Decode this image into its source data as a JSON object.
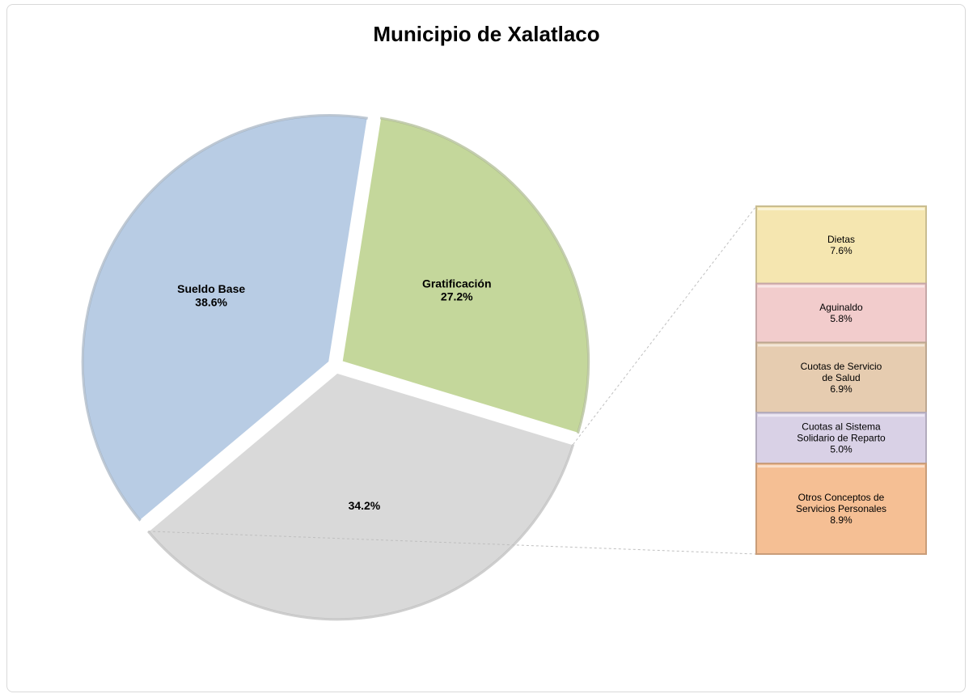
{
  "chart_data": {
    "type": "pie",
    "title": "Municipio de Xalatlaco",
    "slices": [
      {
        "label": "Sueldo Base",
        "value": 38.6,
        "display": "38.6%",
        "color": "#b8cce4"
      },
      {
        "label": "Gratificación",
        "value": 27.2,
        "display": "27.2%",
        "color": "#c4d79b"
      },
      {
        "label": "",
        "value": 34.2,
        "display": "34.2%",
        "color": "#d9d9d9"
      }
    ],
    "breakdown": {
      "of_slice": "34.2%",
      "items": [
        {
          "label_lines": [
            "Dietas"
          ],
          "value": 7.6,
          "display": "7.6%",
          "color": "#f5e6b0"
        },
        {
          "label_lines": [
            "Aguinaldo"
          ],
          "value": 5.8,
          "display": "5.8%",
          "color": "#f2cccc"
        },
        {
          "label_lines": [
            "Cuotas de Servicio",
            "de Salud"
          ],
          "value": 6.9,
          "display": "6.9%",
          "color": "#e6ccb0"
        },
        {
          "label_lines": [
            "Cuotas al Sistema",
            "Solidario de Reparto"
          ],
          "value": 5.0,
          "display": "5.0%",
          "color": "#d9d1e6"
        },
        {
          "label_lines": [
            "Otros Conceptos de",
            "Servicios Personales"
          ],
          "value": 8.9,
          "display": "8.9%",
          "color": "#f5bf94"
        }
      ]
    }
  }
}
